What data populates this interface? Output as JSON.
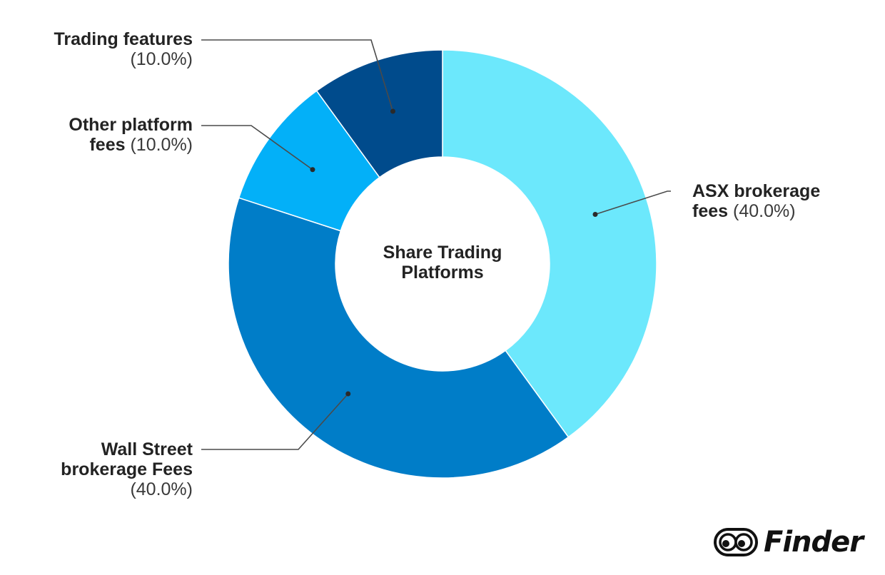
{
  "chart_data": {
    "type": "pie",
    "title": "Share Trading Platforms",
    "categories": [
      "ASX brokerage fees",
      "Wall Street brokerage Fees",
      "Other platform fees",
      "Trading features"
    ],
    "values": [
      40.0,
      40.0,
      10.0,
      10.0
    ],
    "value_labels": [
      "(40.0%)",
      "(40.0%)",
      "(10.0%)",
      "(10.0%)"
    ],
    "colors": [
      "#6ce8fc",
      "#007dc8",
      "#03b0f8",
      "#004b8c"
    ],
    "label_lines": [
      [
        "ASX brokerage",
        "fees"
      ],
      [
        "Wall Street",
        "brokerage Fees"
      ],
      [
        "Other platform",
        "fees"
      ],
      [
        "Trading features"
      ]
    ],
    "donut": true
  },
  "brand": {
    "name": "Finder"
  }
}
